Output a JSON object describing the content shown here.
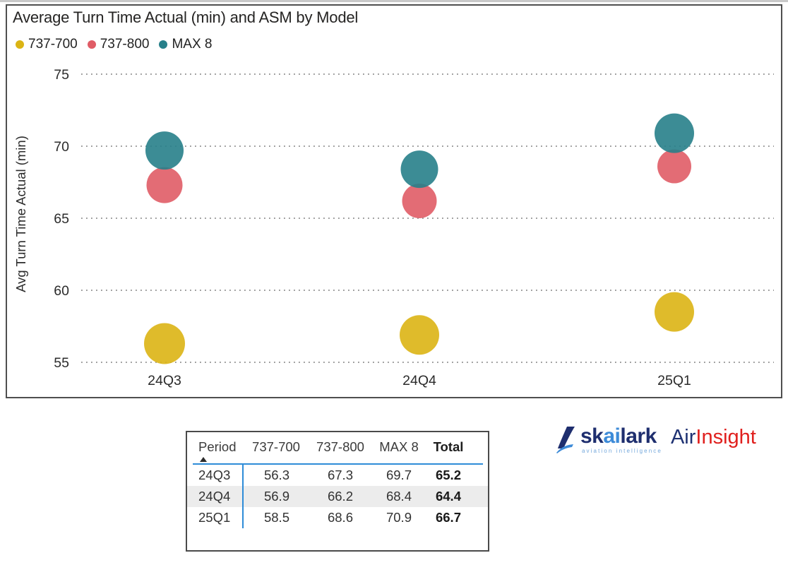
{
  "chart_data": {
    "type": "scatter",
    "title": "Average Turn Time Actual (min) and ASM by Model",
    "categories": [
      "24Q3",
      "24Q4",
      "25Q1"
    ],
    "series": [
      {
        "name": "737-700",
        "color": "#dbb414",
        "values": [
          56.3,
          56.9,
          58.5
        ],
        "bubble_radius_px": [
          29,
          28,
          28
        ]
      },
      {
        "name": "737-800",
        "color": "#e05c66",
        "values": [
          67.3,
          66.2,
          68.6
        ],
        "bubble_radius_px": [
          25.5,
          24.5,
          24
        ]
      },
      {
        "name": "MAX 8",
        "color": "#27808a",
        "values": [
          69.7,
          68.4,
          70.9
        ],
        "bubble_radius_px": [
          27,
          26.5,
          28
        ]
      }
    ],
    "xlabel": "",
    "ylabel": "Avg Turn Time Actual (min)",
    "ylim": [
      55,
      75
    ],
    "yticks": [
      55,
      60,
      65,
      70,
      75
    ],
    "grid": "dotted-horizontal",
    "legend_position": "top-left",
    "size_encoding": "ASM"
  },
  "table": {
    "columns": [
      "Period",
      "737-700",
      "737-800",
      "MAX 8",
      "Total"
    ],
    "sort_column": "Period",
    "sort_direction": "ascending",
    "rows": [
      {
        "period": "24Q3",
        "values": [
          "56.3",
          "67.3",
          "69.7"
        ],
        "total": "65.2"
      },
      {
        "period": "24Q4",
        "values": [
          "56.9",
          "66.2",
          "68.4"
        ],
        "total": "64.4"
      },
      {
        "period": "25Q1",
        "values": [
          "58.5",
          "68.6",
          "70.9"
        ],
        "total": "66.7"
      }
    ]
  },
  "logos": {
    "skailark": {
      "prefix": "sk",
      "highlight": "ai",
      "suffix": "lark",
      "tagline": "aviation intelligence",
      "navy": "#1e2e6e",
      "blue": "#3d8bd8"
    },
    "airinsight": {
      "part1": "Air",
      "part2": "Insight",
      "part1_color": "#1f3273",
      "part2_color": "#e0201e"
    }
  },
  "colors": {
    "grid_dots": "#8c8c8c",
    "axis_text": "#2b2b2b",
    "panel_border": "#4f4f4f",
    "table_accent_blue": "#2e8cd8",
    "shaded_row": "#ececec"
  }
}
